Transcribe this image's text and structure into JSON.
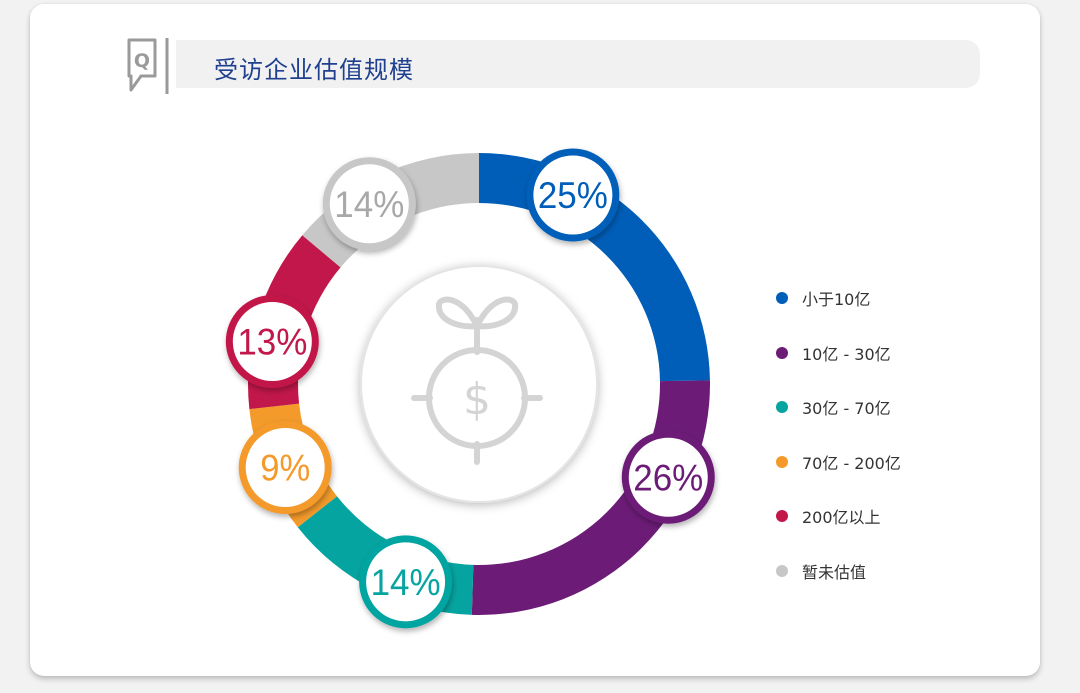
{
  "page": {
    "title": "受访企业估值规模",
    "q_label": "Q",
    "center_icon": "money-plant-target-icon"
  },
  "colors": {
    "title": "#1f3f8f",
    "q_icon": "#9a9a9a",
    "title_bar": "#f1f1f1"
  },
  "chart_data": {
    "type": "pie",
    "variant": "donut",
    "title": "受访企业估值规模",
    "start": "top",
    "direction": "clockwise",
    "legend_position": "right",
    "series": [
      {
        "name": "小于10亿",
        "value": 25,
        "label": "25%",
        "color": "#005eb8"
      },
      {
        "name": "10亿 - 30亿",
        "value": 26,
        "label": "26%",
        "color": "#6c1c77"
      },
      {
        "name": "30亿 - 70亿",
        "value": 14,
        "label": "14%",
        "color": "#06a4a0"
      },
      {
        "name": "70亿 - 200亿",
        "value": 9,
        "label": "9%",
        "color": "#f39a2b"
      },
      {
        "name": "200亿以上",
        "value": 13,
        "label": "13%",
        "color": "#c2174a"
      },
      {
        "name": "暂未估值",
        "value": 14,
        "label": "14%",
        "color": "#c7c7c7"
      }
    ]
  }
}
